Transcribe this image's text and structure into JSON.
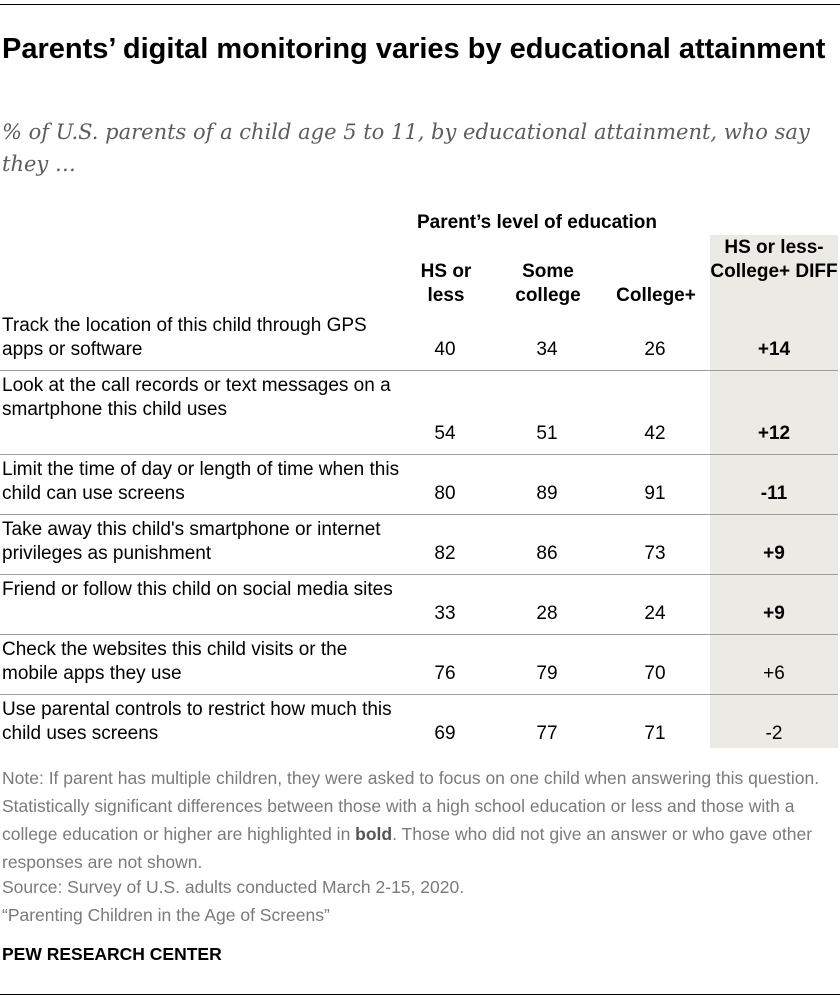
{
  "title": "Parents’ digital monitoring varies by educational attainment",
  "subtitle": "% of U.S. parents of a child age 5 to 11, by educational attainment, who say they …",
  "chart_data": {
    "type": "table",
    "group_header": "Parent’s level of education",
    "columns": [
      "HS or less",
      "Some college",
      "College+",
      "HS or less-College+ DIFF"
    ],
    "rows": [
      {
        "label": "Track the location of this child through GPS apps or software",
        "values": [
          40,
          34,
          26
        ],
        "diff": "+14",
        "significant": true
      },
      {
        "label": "Look at the call records or text messages on a smartphone this child uses",
        "values": [
          54,
          51,
          42
        ],
        "diff": "+12",
        "significant": true
      },
      {
        "label": "Limit the time of day or length of time when this child can use screens",
        "values": [
          80,
          89,
          91
        ],
        "diff": "-11",
        "significant": true
      },
      {
        "label": "Take away this child's smartphone or internet privileges as punishment",
        "values": [
          82,
          86,
          73
        ],
        "diff": "+9",
        "significant": true
      },
      {
        "label": "Friend or follow this child on social media sites",
        "values": [
          33,
          28,
          24
        ],
        "diff": "+9",
        "significant": true
      },
      {
        "label": "Check the websites this child visits or the mobile apps they use",
        "values": [
          76,
          79,
          70
        ],
        "diff": "+6",
        "significant": false
      },
      {
        "label": "Use parental controls to restrict how much this child uses screens",
        "values": [
          69,
          77,
          71
        ],
        "diff": "-2",
        "significant": false
      }
    ],
    "highlight_color": "#eceae5"
  },
  "footer": {
    "note_before_bold": "Note: If parent has multiple children, they were asked to focus on one child when answering this question. Statistically significant differences between those with a high school education or less and those with a college education or higher are highlighted in ",
    "note_bold": "bold",
    "note_after_bold": ". Those who did not give an answer or who gave other responses are not shown.",
    "source": "Source: Survey of U.S. adults conducted March 2-15, 2020.",
    "report": "“Parenting Children in the Age of Screens”",
    "organization": "PEW RESEARCH CENTER"
  }
}
